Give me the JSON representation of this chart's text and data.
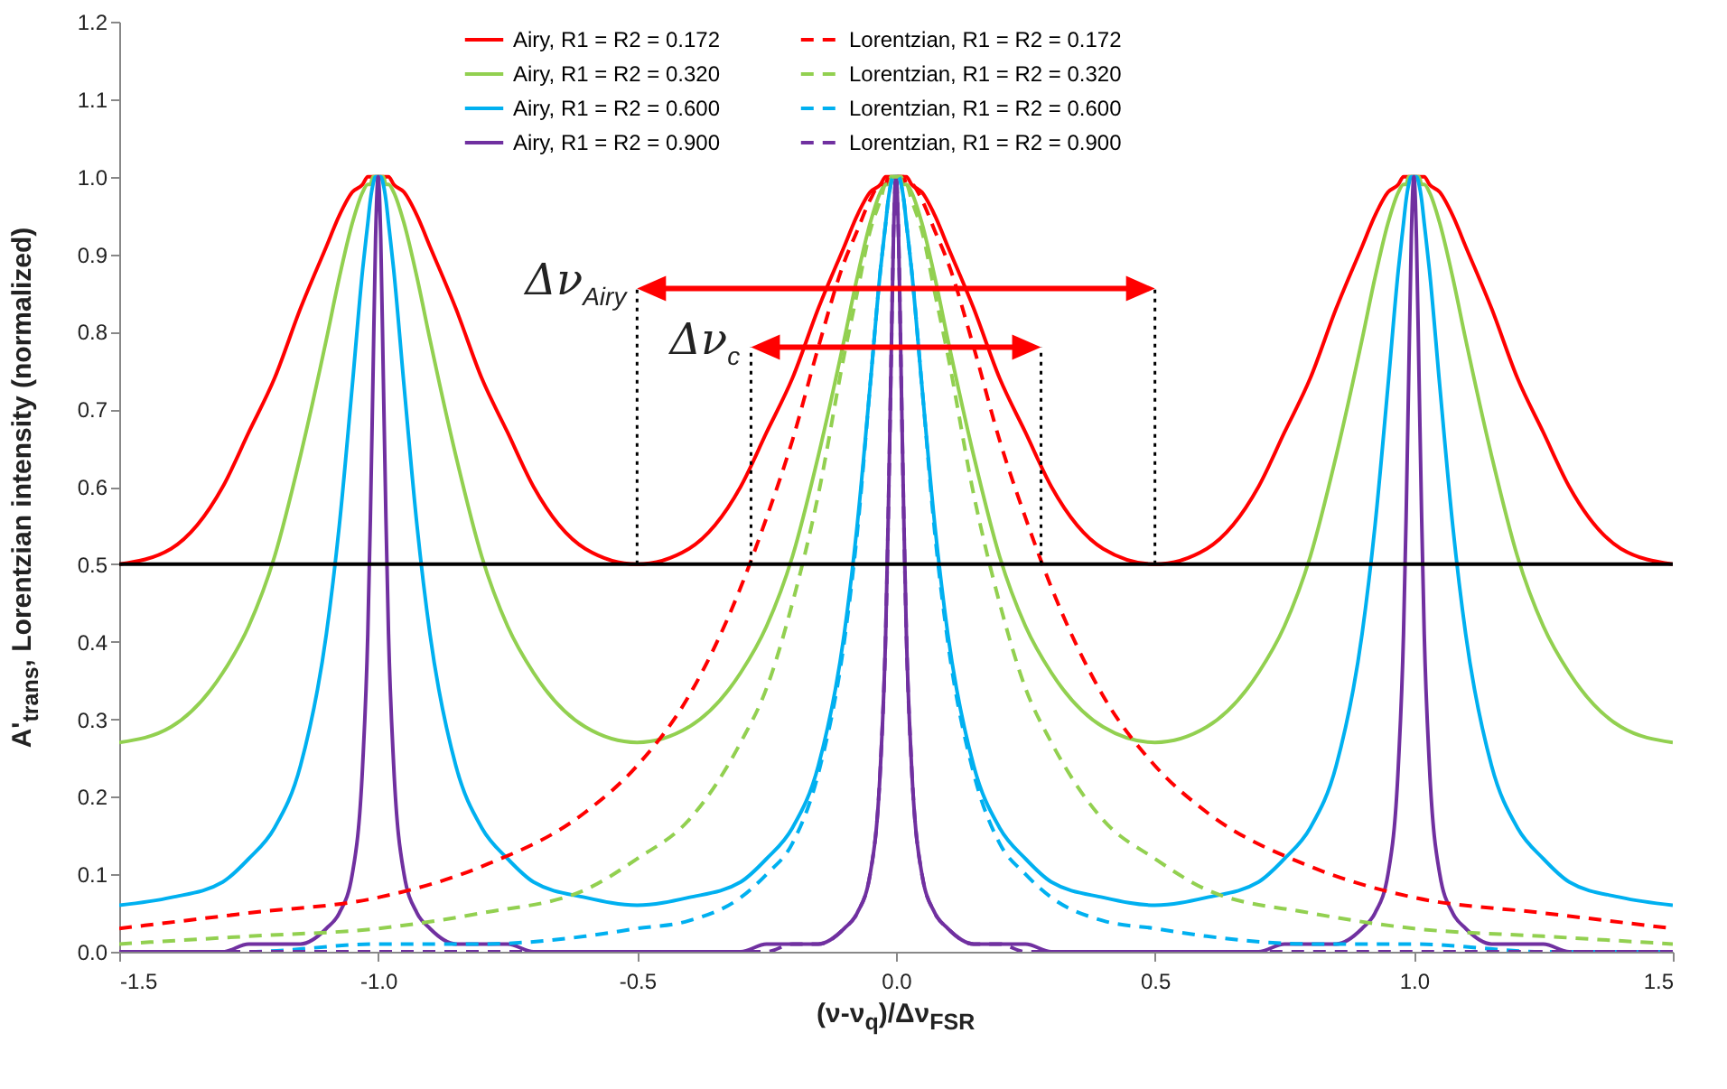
{
  "chart_data": {
    "type": "line",
    "xlabel": "(ν-ν$_{q}$)/Δν$_{FSR}$",
    "ylabel": "A'$_{trans}$, Lorentzian intensity (normalized)",
    "x": [
      -1.5,
      -1.4,
      -1.3,
      -1.25,
      -1.2,
      -1.15,
      -1.1,
      -1.075,
      -1.05,
      -1.03,
      -1.02,
      -1.015,
      -1.01,
      -1.005,
      -1,
      -0.995,
      -0.99,
      -0.985,
      -0.98,
      -0.97,
      -0.95,
      -0.925,
      -0.9,
      -0.85,
      -0.8,
      -0.75,
      -0.7,
      -0.6,
      -0.5,
      -0.4,
      -0.3,
      -0.25,
      -0.2,
      -0.15,
      -0.1,
      -0.075,
      -0.05,
      -0.03,
      -0.02,
      -0.015,
      -0.01,
      -0.005,
      0,
      0.005,
      0.01,
      0.015,
      0.02,
      0.03,
      0.05,
      0.075,
      0.1,
      0.15,
      0.2,
      0.25,
      0.3,
      0.4,
      0.5,
      0.6,
      0.7,
      0.75,
      0.8,
      0.85,
      0.9,
      0.925,
      0.95,
      0.97,
      0.98,
      0.985,
      0.99,
      0.995,
      1,
      1.005,
      1.01,
      1.015,
      1.02,
      1.03,
      1.05,
      1.075,
      1.1,
      1.15,
      1.2,
      1.25,
      1.3,
      1.4,
      1.5
    ],
    "series": [
      {
        "name": "Airy, R1 = R2 = 0.172",
        "color": "#ff0000",
        "line_style": "solid",
        "values": [
          0.5,
          0.52,
          0.6,
          0.67,
          0.74,
          0.83,
          0.91,
          0.95,
          0.98,
          0.99,
          1,
          1,
          1,
          1,
          1,
          1,
          1,
          1,
          1,
          0.99,
          0.98,
          0.95,
          0.91,
          0.83,
          0.74,
          0.67,
          0.6,
          0.52,
          0.5,
          0.52,
          0.6,
          0.67,
          0.74,
          0.83,
          0.91,
          0.95,
          0.98,
          0.99,
          1,
          1,
          1,
          1,
          1,
          1,
          1,
          1,
          1,
          0.99,
          0.98,
          0.95,
          0.91,
          0.83,
          0.74,
          0.67,
          0.6,
          0.52,
          0.5,
          0.52,
          0.6,
          0.67,
          0.74,
          0.83,
          0.91,
          0.95,
          0.98,
          0.99,
          1,
          1,
          1,
          1,
          1,
          1,
          1,
          1,
          1,
          0.99,
          0.98,
          0.95,
          0.91,
          0.83,
          0.74,
          0.67,
          0.6,
          0.52,
          0.5
        ]
      },
      {
        "name": "Lorentzian, R1 = R2 = 0.172",
        "color": "#ff0000",
        "line_style": "dashed",
        "x": [
          -1.5,
          -1.25,
          -1,
          -0.8,
          -0.6,
          -0.5,
          -0.4,
          -0.3,
          -0.25,
          -0.2,
          -0.15,
          -0.1,
          -0.075,
          -0.05,
          -0.03,
          -0.02,
          -0.015,
          -0.01,
          -0.005,
          0,
          0.005,
          0.01,
          0.015,
          0.02,
          0.03,
          0.05,
          0.075,
          0.1,
          0.15,
          0.2,
          0.25,
          0.3,
          0.4,
          0.5,
          0.6,
          0.8,
          1,
          1.25,
          1.5
        ],
        "values": [
          0.03,
          0.05,
          0.07,
          0.11,
          0.18,
          0.24,
          0.33,
          0.47,
          0.56,
          0.66,
          0.78,
          0.89,
          0.93,
          0.97,
          0.99,
          0.99,
          1,
          1,
          1,
          1,
          1,
          1,
          1,
          0.99,
          0.99,
          0.97,
          0.93,
          0.89,
          0.78,
          0.66,
          0.56,
          0.47,
          0.33,
          0.24,
          0.18,
          0.11,
          0.07,
          0.05,
          0.03
        ]
      },
      {
        "name": "Airy, R1 = R2 = 0.320",
        "color": "#92d050",
        "line_style": "solid",
        "values": [
          0.27,
          0.29,
          0.36,
          0.42,
          0.51,
          0.64,
          0.79,
          0.87,
          0.94,
          0.98,
          0.99,
          0.99,
          1,
          1,
          1,
          1,
          1,
          0.99,
          0.99,
          0.98,
          0.94,
          0.87,
          0.79,
          0.64,
          0.51,
          0.42,
          0.36,
          0.29,
          0.27,
          0.29,
          0.36,
          0.42,
          0.51,
          0.64,
          0.79,
          0.87,
          0.94,
          0.98,
          0.99,
          0.99,
          1,
          1,
          1,
          1,
          1,
          0.99,
          0.99,
          0.98,
          0.94,
          0.87,
          0.79,
          0.64,
          0.51,
          0.42,
          0.36,
          0.29,
          0.27,
          0.29,
          0.36,
          0.42,
          0.51,
          0.64,
          0.79,
          0.87,
          0.94,
          0.98,
          0.99,
          0.99,
          1,
          1,
          1,
          1,
          1,
          0.99,
          0.99,
          0.98,
          0.94,
          0.87,
          0.79,
          0.64,
          0.51,
          0.42,
          0.36,
          0.29,
          0.27
        ]
      },
      {
        "name": "Lorentzian, R1 = R2 = 0.320",
        "color": "#92d050",
        "line_style": "dashed",
        "x": [
          -1.5,
          -1.25,
          -1,
          -0.8,
          -0.6,
          -0.5,
          -0.4,
          -0.3,
          -0.25,
          -0.2,
          -0.15,
          -0.1,
          -0.075,
          -0.05,
          -0.03,
          -0.02,
          -0.015,
          -0.01,
          -0.005,
          0,
          0.005,
          0.01,
          0.015,
          0.02,
          0.03,
          0.05,
          0.075,
          0.1,
          0.15,
          0.2,
          0.25,
          0.3,
          0.4,
          0.5,
          0.6,
          0.8,
          1,
          1.25,
          1.5
        ],
        "values": [
          0.01,
          0.02,
          0.03,
          0.05,
          0.08,
          0.12,
          0.17,
          0.27,
          0.34,
          0.45,
          0.59,
          0.77,
          0.85,
          0.93,
          0.97,
          0.99,
          0.99,
          1,
          1,
          1,
          1,
          1,
          0.99,
          0.99,
          0.97,
          0.93,
          0.85,
          0.77,
          0.59,
          0.45,
          0.34,
          0.27,
          0.17,
          0.12,
          0.08,
          0.05,
          0.03,
          0.02,
          0.01
        ]
      },
      {
        "name": "Airy, R1 = R2 = 0.600",
        "color": "#00b0f0",
        "line_style": "solid",
        "values": [
          0.06,
          0.07,
          0.09,
          0.12,
          0.16,
          0.24,
          0.41,
          0.55,
          0.73,
          0.88,
          0.94,
          0.97,
          0.99,
          1,
          1,
          1,
          0.99,
          0.97,
          0.94,
          0.88,
          0.73,
          0.55,
          0.41,
          0.24,
          0.16,
          0.12,
          0.09,
          0.07,
          0.06,
          0.07,
          0.09,
          0.12,
          0.16,
          0.24,
          0.41,
          0.55,
          0.73,
          0.88,
          0.94,
          0.97,
          0.99,
          1,
          1,
          1,
          0.99,
          0.97,
          0.94,
          0.88,
          0.73,
          0.55,
          0.41,
          0.24,
          0.16,
          0.12,
          0.09,
          0.07,
          0.06,
          0.07,
          0.09,
          0.12,
          0.16,
          0.24,
          0.41,
          0.55,
          0.73,
          0.88,
          0.94,
          0.97,
          0.99,
          1,
          1,
          1,
          0.99,
          0.97,
          0.94,
          0.88,
          0.73,
          0.55,
          0.41,
          0.24,
          0.16,
          0.12,
          0.09,
          0.07,
          0.06
        ]
      },
      {
        "name": "Lorentzian, R1 = R2 = 0.600",
        "color": "#00b0f0",
        "line_style": "dashed",
        "x": [
          -1.5,
          -1.25,
          -1,
          -0.8,
          -0.6,
          -0.5,
          -0.4,
          -0.3,
          -0.25,
          -0.2,
          -0.15,
          -0.1,
          -0.075,
          -0.05,
          -0.03,
          -0.02,
          -0.015,
          -0.01,
          -0.005,
          0,
          0.005,
          0.01,
          0.015,
          0.02,
          0.03,
          0.05,
          0.075,
          0.1,
          0.15,
          0.2,
          0.25,
          0.3,
          0.4,
          0.5,
          0.6,
          0.8,
          1,
          1.25,
          1.5
        ],
        "values": [
          0,
          0,
          0.01,
          0.01,
          0.02,
          0.03,
          0.04,
          0.07,
          0.1,
          0.14,
          0.23,
          0.4,
          0.54,
          0.73,
          0.88,
          0.94,
          0.97,
          0.99,
          1,
          1,
          1,
          0.99,
          0.97,
          0.94,
          0.88,
          0.73,
          0.54,
          0.4,
          0.23,
          0.14,
          0.1,
          0.07,
          0.04,
          0.03,
          0.02,
          0.01,
          0.01,
          0,
          0
        ]
      },
      {
        "name": "Airy, R1 = R2 = 0.900",
        "color": "#7030a0",
        "line_style": "solid",
        "values": [
          0,
          0,
          0,
          0.01,
          0.01,
          0.01,
          0.03,
          0.05,
          0.1,
          0.24,
          0.41,
          0.56,
          0.74,
          0.92,
          1,
          0.92,
          0.74,
          0.56,
          0.41,
          0.24,
          0.1,
          0.05,
          0.03,
          0.01,
          0.01,
          0.01,
          0,
          0,
          0,
          0,
          0,
          0.01,
          0.01,
          0.01,
          0.03,
          0.05,
          0.1,
          0.24,
          0.41,
          0.56,
          0.74,
          0.92,
          1,
          0.92,
          0.74,
          0.56,
          0.41,
          0.24,
          0.1,
          0.05,
          0.03,
          0.01,
          0.01,
          0.01,
          0,
          0,
          0,
          0,
          0,
          0.01,
          0.01,
          0.01,
          0.03,
          0.05,
          0.1,
          0.24,
          0.41,
          0.56,
          0.74,
          0.92,
          1,
          0.92,
          0.74,
          0.56,
          0.41,
          0.24,
          0.1,
          0.05,
          0.03,
          0.01,
          0.01,
          0.01,
          0,
          0,
          0
        ]
      },
      {
        "name": "Lorentzian, R1 = R2 = 0.900",
        "color": "#7030a0",
        "line_style": "dashed",
        "x": [
          -1.5,
          -1.25,
          -1,
          -0.8,
          -0.6,
          -0.5,
          -0.4,
          -0.3,
          -0.25,
          -0.2,
          -0.15,
          -0.1,
          -0.075,
          -0.05,
          -0.03,
          -0.02,
          -0.015,
          -0.01,
          -0.005,
          0,
          0.005,
          0.01,
          0.015,
          0.02,
          0.03,
          0.05,
          0.075,
          0.1,
          0.15,
          0.2,
          0.25,
          0.3,
          0.4,
          0.5,
          0.6,
          0.8,
          1,
          1.25,
          1.5
        ],
        "values": [
          0,
          0,
          0,
          0,
          0,
          0,
          0,
          0,
          0,
          0.01,
          0.01,
          0.03,
          0.05,
          0.1,
          0.24,
          0.41,
          0.56,
          0.74,
          0.92,
          1,
          0.92,
          0.74,
          0.56,
          0.41,
          0.24,
          0.1,
          0.05,
          0.03,
          0.01,
          0.01,
          0,
          0,
          0,
          0,
          0,
          0,
          0,
          0,
          0
        ]
      }
    ],
    "xlim": [
      -1.5,
      1.5
    ],
    "xticks": [
      -1.5,
      {
        "value": -1,
        "label": "-1.0"
      },
      -0.5,
      {
        "value": 0,
        "label": "0.0"
      },
      0.5,
      {
        "value": 1,
        "label": "1.0"
      },
      1.5
    ],
    "ylim": [
      0,
      1.2
    ],
    "yticks": [
      {
        "value": 0,
        "label": "0.0"
      },
      0.1,
      0.2,
      0.3,
      0.4,
      0.5,
      0.6,
      0.7,
      0.8,
      0.9,
      {
        "value": 1,
        "label": "1.0"
      },
      1.1,
      1.2
    ],
    "grid": false,
    "legend": "top",
    "marker": "none",
    "ref_lines": [
      {
        "axis": "y",
        "value": 0.5,
        "color": "#000000"
      },
      {
        "axis": "x",
        "value": -0.5,
        "color": "#000000",
        "line_style": "dotted"
      },
      {
        "axis": "x",
        "value": 0.5,
        "color": "#000000",
        "line_style": "dotted"
      },
      {
        "axis": "x",
        "value": -0.28,
        "color": "#000000",
        "line_style": "dotted"
      },
      {
        "axis": "x",
        "value": 0.28,
        "color": "#000000",
        "line_style": "dotted"
      }
    ],
    "annotations": [
      "Δν$_{Airy}$",
      "Δν$_{c}$"
    ]
  }
}
